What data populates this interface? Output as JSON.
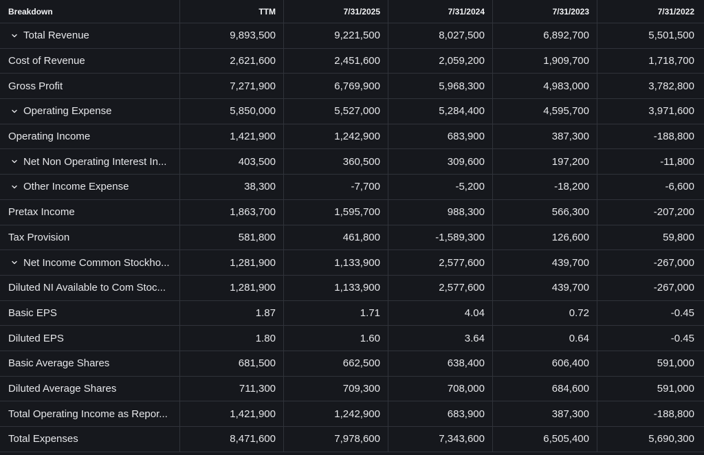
{
  "header": {
    "breakdown": "Breakdown",
    "cols": [
      "TTM",
      "7/31/2025",
      "7/31/2024",
      "7/31/2023",
      "7/31/2022"
    ]
  },
  "rows": [
    {
      "label": "Total Revenue",
      "expandable": true,
      "values": [
        "9,893,500",
        "9,221,500",
        "8,027,500",
        "6,892,700",
        "5,501,500"
      ]
    },
    {
      "label": "Cost of Revenue",
      "expandable": false,
      "values": [
        "2,621,600",
        "2,451,600",
        "2,059,200",
        "1,909,700",
        "1,718,700"
      ]
    },
    {
      "label": "Gross Profit",
      "expandable": false,
      "values": [
        "7,271,900",
        "6,769,900",
        "5,968,300",
        "4,983,000",
        "3,782,800"
      ]
    },
    {
      "label": "Operating Expense",
      "expandable": true,
      "values": [
        "5,850,000",
        "5,527,000",
        "5,284,400",
        "4,595,700",
        "3,971,600"
      ]
    },
    {
      "label": "Operating Income",
      "expandable": false,
      "values": [
        "1,421,900",
        "1,242,900",
        "683,900",
        "387,300",
        "-188,800"
      ]
    },
    {
      "label": "Net Non Operating Interest In...",
      "expandable": true,
      "values": [
        "403,500",
        "360,500",
        "309,600",
        "197,200",
        "-11,800"
      ]
    },
    {
      "label": "Other Income Expense",
      "expandable": true,
      "values": [
        "38,300",
        "-7,700",
        "-5,200",
        "-18,200",
        "-6,600"
      ]
    },
    {
      "label": "Pretax Income",
      "expandable": false,
      "values": [
        "1,863,700",
        "1,595,700",
        "988,300",
        "566,300",
        "-207,200"
      ]
    },
    {
      "label": "Tax Provision",
      "expandable": false,
      "values": [
        "581,800",
        "461,800",
        "-1,589,300",
        "126,600",
        "59,800"
      ]
    },
    {
      "label": "Net Income Common Stockho...",
      "expandable": true,
      "values": [
        "1,281,900",
        "1,133,900",
        "2,577,600",
        "439,700",
        "-267,000"
      ]
    },
    {
      "label": "Diluted NI Available to Com Stoc...",
      "expandable": false,
      "values": [
        "1,281,900",
        "1,133,900",
        "2,577,600",
        "439,700",
        "-267,000"
      ]
    },
    {
      "label": "Basic EPS",
      "expandable": false,
      "values": [
        "1.87",
        "1.71",
        "4.04",
        "0.72",
        "-0.45"
      ]
    },
    {
      "label": "Diluted EPS",
      "expandable": false,
      "values": [
        "1.80",
        "1.60",
        "3.64",
        "0.64",
        "-0.45"
      ]
    },
    {
      "label": "Basic Average Shares",
      "expandable": false,
      "values": [
        "681,500",
        "662,500",
        "638,400",
        "606,400",
        "591,000"
      ]
    },
    {
      "label": "Diluted Average Shares",
      "expandable": false,
      "values": [
        "711,300",
        "709,300",
        "708,000",
        "684,600",
        "591,000"
      ]
    },
    {
      "label": "Total Operating Income as Repor...",
      "expandable": false,
      "values": [
        "1,421,900",
        "1,242,900",
        "683,900",
        "387,300",
        "-188,800"
      ]
    },
    {
      "label": "Total Expenses",
      "expandable": false,
      "values": [
        "8,471,600",
        "7,978,600",
        "7,343,600",
        "6,505,400",
        "5,690,300"
      ]
    }
  ]
}
